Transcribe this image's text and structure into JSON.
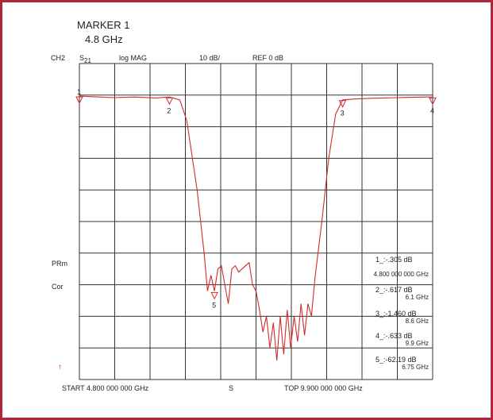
{
  "header": {
    "marker_title": "MARKER 1",
    "marker_freq": "4.8 GHz",
    "channel": "CH2",
    "param": "S",
    "param_sub": "21",
    "format": "log MAG",
    "scale": "10 dB/",
    "ref": "REF 0 dB"
  },
  "side_labels": {
    "prm": "PRm",
    "cor": "Cor",
    "arrow": "↑"
  },
  "footer": {
    "start": "START  4.800 000 000 GHz",
    "mid": "S",
    "stop": "TOP  9.900 000 000 GHz"
  },
  "markers_readout": [
    {
      "line1": "1_:-.305  dB",
      "line2": "4.800 000 000 GHz"
    },
    {
      "line1": "2_:-.617  dB",
      "line2": "6.1 GHz"
    },
    {
      "line1": "3_:-1.460  dB",
      "line2": "8.6 GHz"
    },
    {
      "line1": "4_:-.633  dB",
      "line2": "9.9 GHz"
    },
    {
      "line1": "5_:-62.19  dB",
      "line2": "6.75 GHz"
    }
  ],
  "chart_data": {
    "type": "line",
    "x_unit": "GHz",
    "y_unit": "dB",
    "xlim": [
      4.8,
      9.9
    ],
    "ylim": [
      -90,
      10
    ],
    "grid": true,
    "trace_color": "#d42a2a",
    "markers": [
      {
        "label": "1",
        "x": 4.8,
        "y": -0.305
      },
      {
        "label": "2",
        "x": 6.1,
        "y": -0.617
      },
      {
        "label": "3",
        "x": 8.6,
        "y": -1.46
      },
      {
        "label": "4",
        "x": 9.9,
        "y": -0.633
      },
      {
        "label": "5",
        "x": 6.75,
        "y": -62.19
      }
    ],
    "series": [
      {
        "x": [
          4.8,
          5.0,
          5.3,
          5.6,
          5.9,
          6.1,
          6.25,
          6.35,
          6.5,
          6.6,
          6.65,
          6.7,
          6.75,
          6.8,
          6.85,
          6.9,
          6.95,
          7.0,
          7.05,
          7.1,
          7.15,
          7.2,
          7.25,
          7.3,
          7.35,
          7.4,
          7.45,
          7.5,
          7.55,
          7.6,
          7.65,
          7.7,
          7.75,
          7.8,
          7.85,
          7.9,
          7.95,
          8.0,
          8.05,
          8.1,
          8.15,
          8.2,
          8.3,
          8.4,
          8.5,
          8.6,
          8.8,
          9.0,
          9.2,
          9.4,
          9.6,
          9.8,
          9.9
        ],
        "y": [
          -0.3,
          -0.5,
          -0.8,
          -0.6,
          -0.9,
          -0.6,
          -1.5,
          -8,
          -30,
          -50,
          -62,
          -57,
          -62,
          -55,
          -54,
          -60,
          -66,
          -55,
          -54,
          -56,
          -55,
          -54,
          -53,
          -60,
          -62,
          -68,
          -75,
          -70,
          -80,
          -72,
          -84,
          -70,
          -82,
          -68,
          -80,
          -70,
          -78,
          -66,
          -76,
          -66,
          -70,
          -58,
          -40,
          -20,
          -6,
          -1.5,
          -1.2,
          -1.0,
          -0.9,
          -0.8,
          -0.7,
          -0.6,
          -0.6
        ]
      }
    ]
  }
}
